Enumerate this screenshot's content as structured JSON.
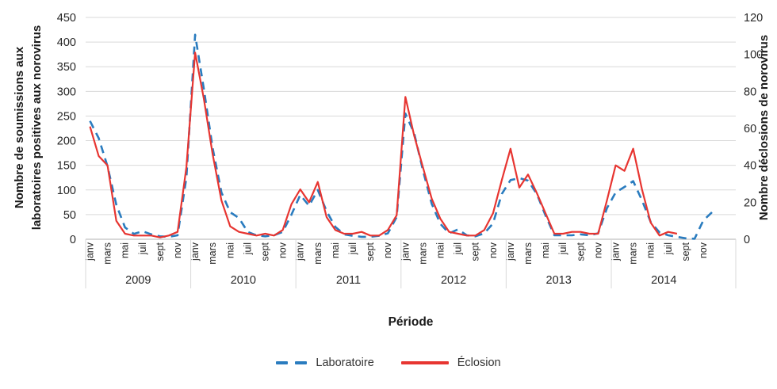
{
  "chart_data": {
    "type": "line",
    "title": "",
    "x_axis_label": "Période",
    "grid": "horizontal",
    "legend_position": "bottom",
    "years": [
      "2009",
      "2010",
      "2011",
      "2012",
      "2013",
      "2014"
    ],
    "month_tick_labels": [
      "janv",
      "mars",
      "mai",
      "juil",
      "sept",
      "nov"
    ],
    "months_per_year": 12,
    "y_left": {
      "label": "Nombre de soumissions aux laboratoires positives aux norovirus",
      "min": 0,
      "max": 450,
      "step": 50,
      "tick_labels": [
        "0",
        "50",
        "100",
        "150",
        "200",
        "250",
        "300",
        "350",
        "400",
        "450"
      ]
    },
    "y_right": {
      "label": "Nombre déclosions de norovirus",
      "min": 0,
      "max": 120,
      "step": 20,
      "tick_labels": [
        "0",
        "20",
        "40",
        "60",
        "80",
        "100",
        "120"
      ]
    },
    "colors": {
      "laboratoire": "#2A7CBF",
      "eclosion": "#E73531",
      "grid": "#d9d9d9",
      "axis": "#b0b0b0"
    },
    "series": [
      {
        "name": "Laboratoire",
        "axis": "left",
        "color": "#2A7CBF",
        "line_style": "dashed",
        "values": [
          240,
          205,
          148,
          70,
          24,
          11,
          16,
          10,
          6,
          5,
          8,
          125,
          415,
          305,
          185,
          95,
          55,
          43,
          15,
          8,
          6,
          8,
          15,
          50,
          90,
          68,
          100,
          57,
          25,
          10,
          7,
          5,
          5,
          7,
          12,
          45,
          255,
          215,
          140,
          72,
          31,
          12,
          20,
          8,
          6,
          12,
          32,
          92,
          120,
          124,
          119,
          92,
          48,
          8,
          8,
          8,
          10,
          8,
          12,
          63,
          95,
          106,
          118,
          79,
          35,
          14,
          8,
          5,
          2,
          1,
          38,
          55
        ]
      },
      {
        "name": "Éclosion",
        "axis": "right",
        "color": "#E73531",
        "line_style": "solid",
        "values": [
          61,
          45,
          40,
          10,
          3,
          2,
          2,
          2,
          1,
          2,
          4,
          39,
          101,
          76,
          46,
          21,
          7,
          4,
          3,
          2,
          3,
          2,
          5,
          19,
          27,
          20,
          31,
          12,
          5,
          3,
          3,
          4,
          2,
          2,
          5,
          13,
          77,
          56,
          39,
          22,
          11,
          4,
          3,
          2,
          2,
          5,
          14,
          32,
          49,
          28,
          35,
          25,
          14,
          3,
          3,
          4,
          4,
          3,
          3,
          21,
          40,
          37,
          49,
          27,
          9,
          2,
          4,
          3,
          null,
          null,
          null,
          null
        ]
      }
    ]
  }
}
